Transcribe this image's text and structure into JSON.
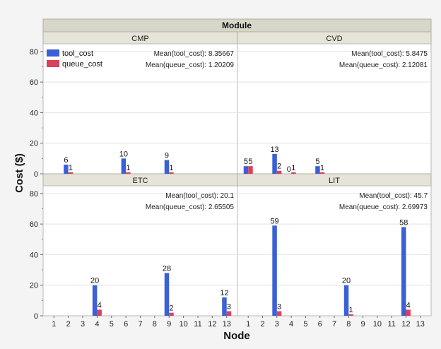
{
  "chart_data": {
    "type": "bar",
    "group_title": "Module",
    "xlabel": "Node",
    "ylabel": "Cost ($)",
    "ylim": [
      0,
      85
    ],
    "yticks": [
      0,
      20,
      40,
      60,
      80
    ],
    "x_ticks": [
      "1",
      "2",
      "3",
      "4",
      "5",
      "6",
      "7",
      "8",
      "9",
      "10",
      "11",
      "12",
      "13"
    ],
    "legend": [
      {
        "name": "tool_cost",
        "color": "#3a60d8"
      },
      {
        "name": "queue_cost",
        "color": "#d9415a"
      }
    ],
    "panels": [
      {
        "module": "CMP",
        "mean_tool_label": "Mean(tool_cost): 8.35667",
        "mean_queue_label": "Mean(queue_cost): 1.20209",
        "points": [
          {
            "node": 2,
            "tool_cost": 6,
            "queue_cost": 1
          },
          {
            "node": 6,
            "tool_cost": 10,
            "queue_cost": 1
          },
          {
            "node": 9,
            "tool_cost": 9,
            "queue_cost": 1
          }
        ]
      },
      {
        "module": "CVD",
        "mean_tool_label": "Mean(tool_cost): 5.8475",
        "mean_queue_label": "Mean(queue_cost): 2.12081",
        "points": [
          {
            "node": 1,
            "tool_cost": 5,
            "queue_cost": 5
          },
          {
            "node": 3,
            "tool_cost": 13,
            "queue_cost": 2
          },
          {
            "node": 4,
            "tool_cost": 0,
            "queue_cost": 1
          },
          {
            "node": 6,
            "tool_cost": 5,
            "queue_cost": 1
          }
        ]
      },
      {
        "module": "ETC",
        "mean_tool_label": "Mean(tool_cost): 20.1",
        "mean_queue_label": "Mean(queue_cost): 2.65505",
        "points": [
          {
            "node": 4,
            "tool_cost": 20,
            "queue_cost": 4
          },
          {
            "node": 9,
            "tool_cost": 28,
            "queue_cost": 2
          },
          {
            "node": 13,
            "tool_cost": 12,
            "queue_cost": 3
          }
        ]
      },
      {
        "module": "LIT",
        "mean_tool_label": "Mean(tool_cost): 45.7",
        "mean_queue_label": "Mean(queue_cost): 2.69973",
        "points": [
          {
            "node": 3,
            "tool_cost": 59,
            "queue_cost": 3
          },
          {
            "node": 8,
            "tool_cost": 20,
            "queue_cost": 1
          },
          {
            "node": 12,
            "tool_cost": 58,
            "queue_cost": 4
          }
        ]
      }
    ]
  }
}
